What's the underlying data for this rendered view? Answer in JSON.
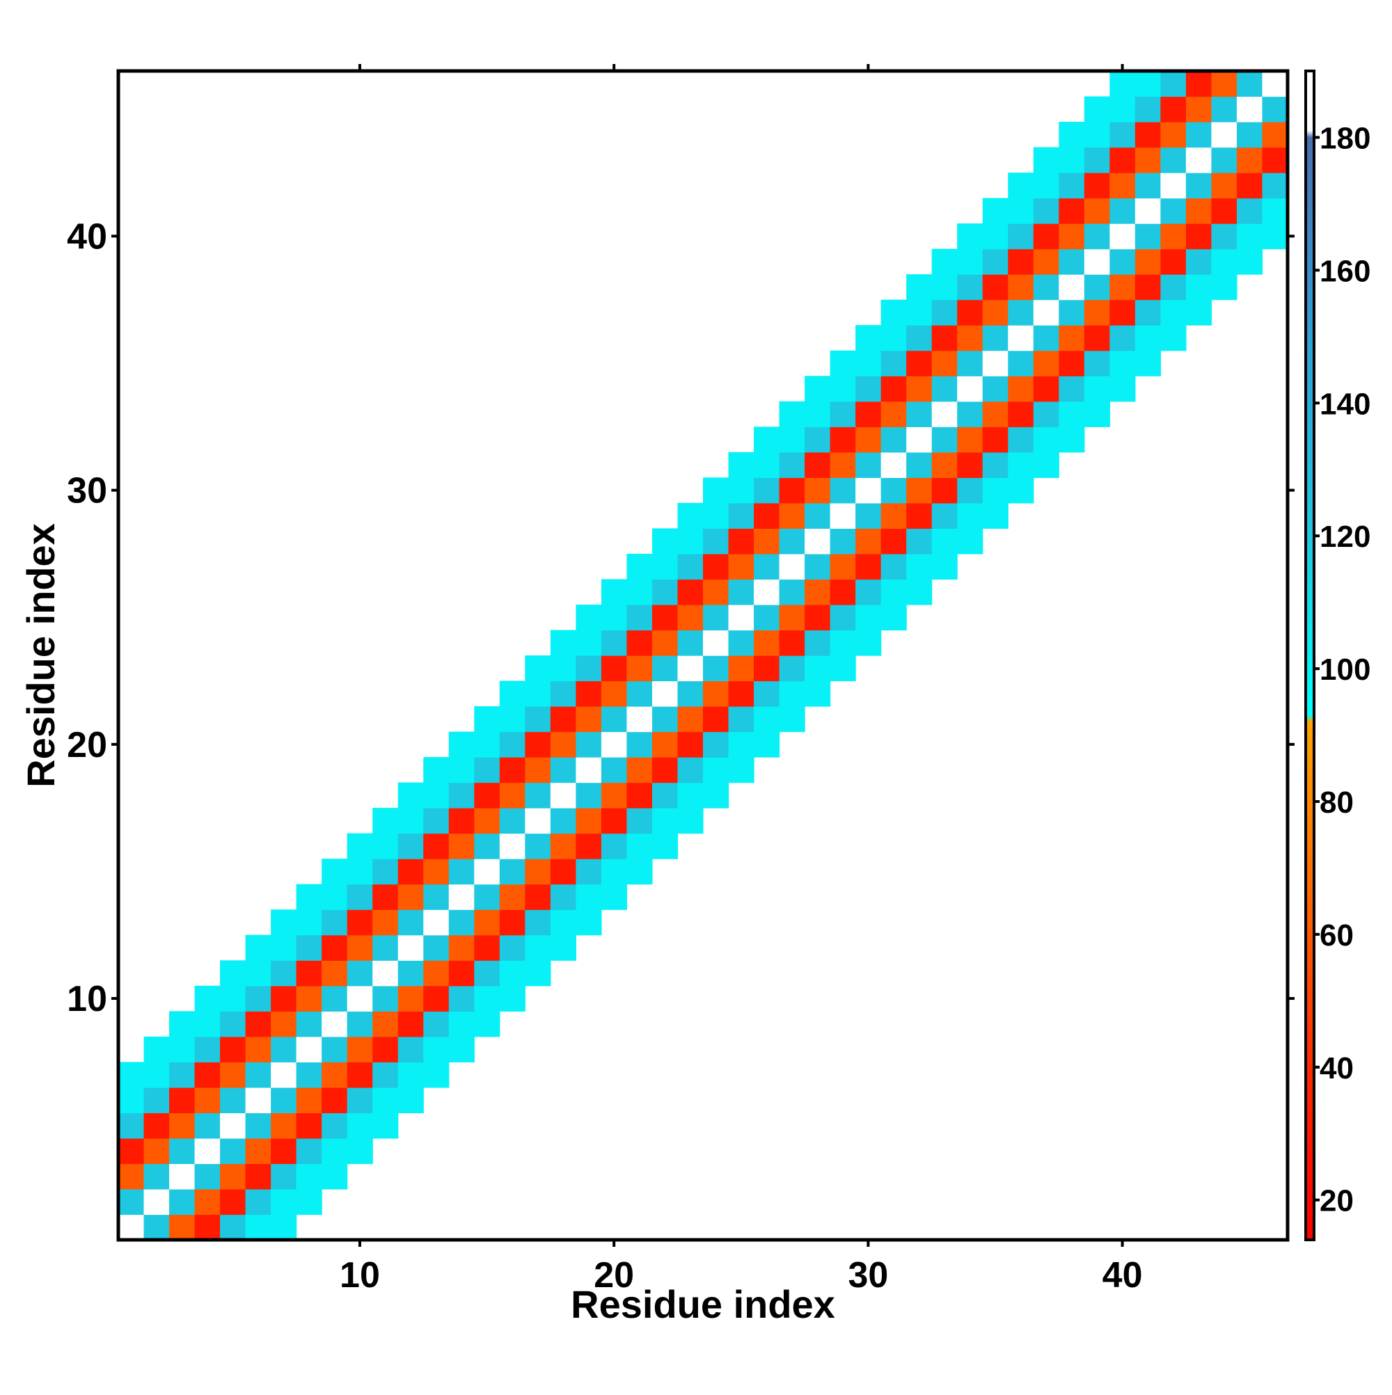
{
  "chart_data": {
    "type": "heatmap",
    "title": "",
    "xlabel": "Residue index",
    "ylabel": "Residue index",
    "xlim": [
      0.5,
      46.5
    ],
    "ylim": [
      0.5,
      46.5
    ],
    "x_ticks": [
      10,
      20,
      30,
      40
    ],
    "y_ticks": [
      10,
      20,
      30,
      40
    ],
    "colorbar": {
      "ticks": [
        20,
        40,
        60,
        80,
        100,
        120,
        140,
        160,
        180
      ],
      "range": [
        14,
        190
      ],
      "stops": [
        {
          "value": 14,
          "color": "#ff0000"
        },
        {
          "value": 40,
          "color": "#ff2a00"
        },
        {
          "value": 60,
          "color": "#ff5a00"
        },
        {
          "value": 92,
          "color": "#ffa500"
        },
        {
          "value": 93,
          "color": "#00ffff"
        },
        {
          "value": 120,
          "color": "#1ec8e0"
        },
        {
          "value": 150,
          "color": "#2ea0d8"
        },
        {
          "value": 180,
          "color": "#4a6fb0"
        },
        {
          "value": 181,
          "color": "#ffffff"
        },
        {
          "value": 190,
          "color": "#ffffff"
        }
      ]
    },
    "diagonal_value": 188,
    "offset_values": {
      "1": 120,
      "2": 60,
      "3": 30,
      "4": 120,
      "5": 100,
      "6": 100
    },
    "colors": {
      "frame": "#000000",
      "background": "#ffffff"
    }
  }
}
